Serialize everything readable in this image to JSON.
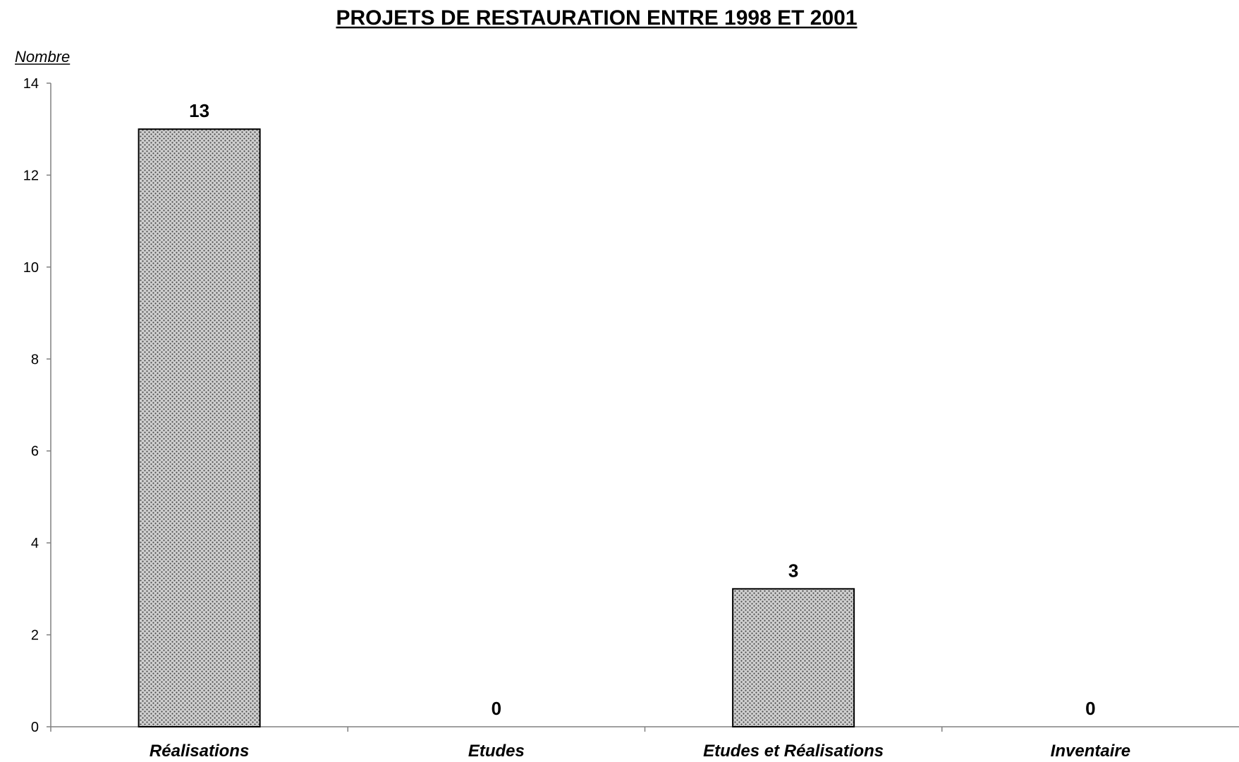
{
  "chart_data": {
    "type": "bar",
    "title": "PROJETS DE RESTAURATION ENTRE 1998 ET 2001",
    "ylabel": "Nombre",
    "xlabel": "",
    "categories": [
      "Réalisations",
      "Etudes",
      "Etudes et Réalisations",
      "Inventaire"
    ],
    "values": [
      13,
      0,
      3,
      0
    ],
    "ylim": [
      0,
      14
    ],
    "yticks": [
      "0",
      "2",
      "4",
      "6",
      "8",
      "10",
      "12",
      "14"
    ],
    "grid": false,
    "legend": "none",
    "bar_pattern": "dotted-crosshatch",
    "colors": {
      "bar_fill": "#c8c8c8",
      "bar_pattern_dot": "#4a4a4a",
      "bar_stroke": "#000000",
      "axis": "#808080",
      "text": "#000000"
    }
  }
}
